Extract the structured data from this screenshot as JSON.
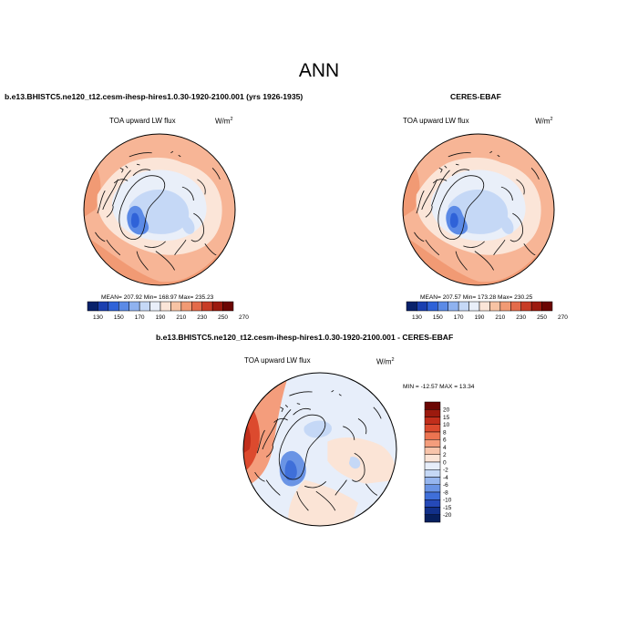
{
  "title": "ANN",
  "panels": [
    {
      "subtitle": "b.e13.BHISTC5.ne120_t12.cesm-ihesp-hires1.0.30-1920-2100.001 (yrs 1926-1935)",
      "variable": "TOA upward LW flux",
      "units": "W/m",
      "units_exp": "2",
      "stats": "MEAN= 207.92  Min= 168.97  Max= 235.23"
    },
    {
      "subtitle": "CERES-EBAF",
      "variable": "TOA upward LW flux",
      "units": "W/m",
      "units_exp": "2",
      "stats": "MEAN= 207.57  Min= 173.28  Max= 230.25"
    },
    {
      "subtitle": "b.e13.BHISTC5.ne120_t12.cesm-ihesp-hires1.0.30-1920-2100.001 - CERES-EBAF",
      "variable": "TOA upward LW flux",
      "units": "W/m",
      "units_exp": "2",
      "stats": "MIN = -12.57 MAX =  13.34"
    }
  ],
  "colorbar_abs": {
    "labels": [
      "130",
      "150",
      "170",
      "190",
      "210",
      "230",
      "250",
      "270"
    ],
    "colors": [
      "#08216b",
      "#1a3fb0",
      "#2f62d8",
      "#5b8ae6",
      "#8fb2ef",
      "#c5d8f6",
      "#e9eff9",
      "#fbe5d8",
      "#f7c3a4",
      "#f19a74",
      "#e46b4a",
      "#c83c25",
      "#9c1a0e",
      "#6b0603"
    ]
  },
  "colorbar_diff": {
    "labels": [
      "20",
      "15",
      "10",
      "8",
      "6",
      "4",
      "2",
      "0",
      "-2",
      "-4",
      "-6",
      "-8",
      "-10",
      "-15",
      "-20"
    ],
    "colors": [
      "#6b0603",
      "#9c1a0e",
      "#c12e1b",
      "#dc4a2e",
      "#ec7451",
      "#f49d7c",
      "#f8c4aa",
      "#fbe4d6",
      "#e7eefa",
      "#c5d8f6",
      "#96b6ef",
      "#6a94e5",
      "#3f6fd9",
      "#2549b8",
      "#12308a",
      "#071f5e"
    ]
  }
}
